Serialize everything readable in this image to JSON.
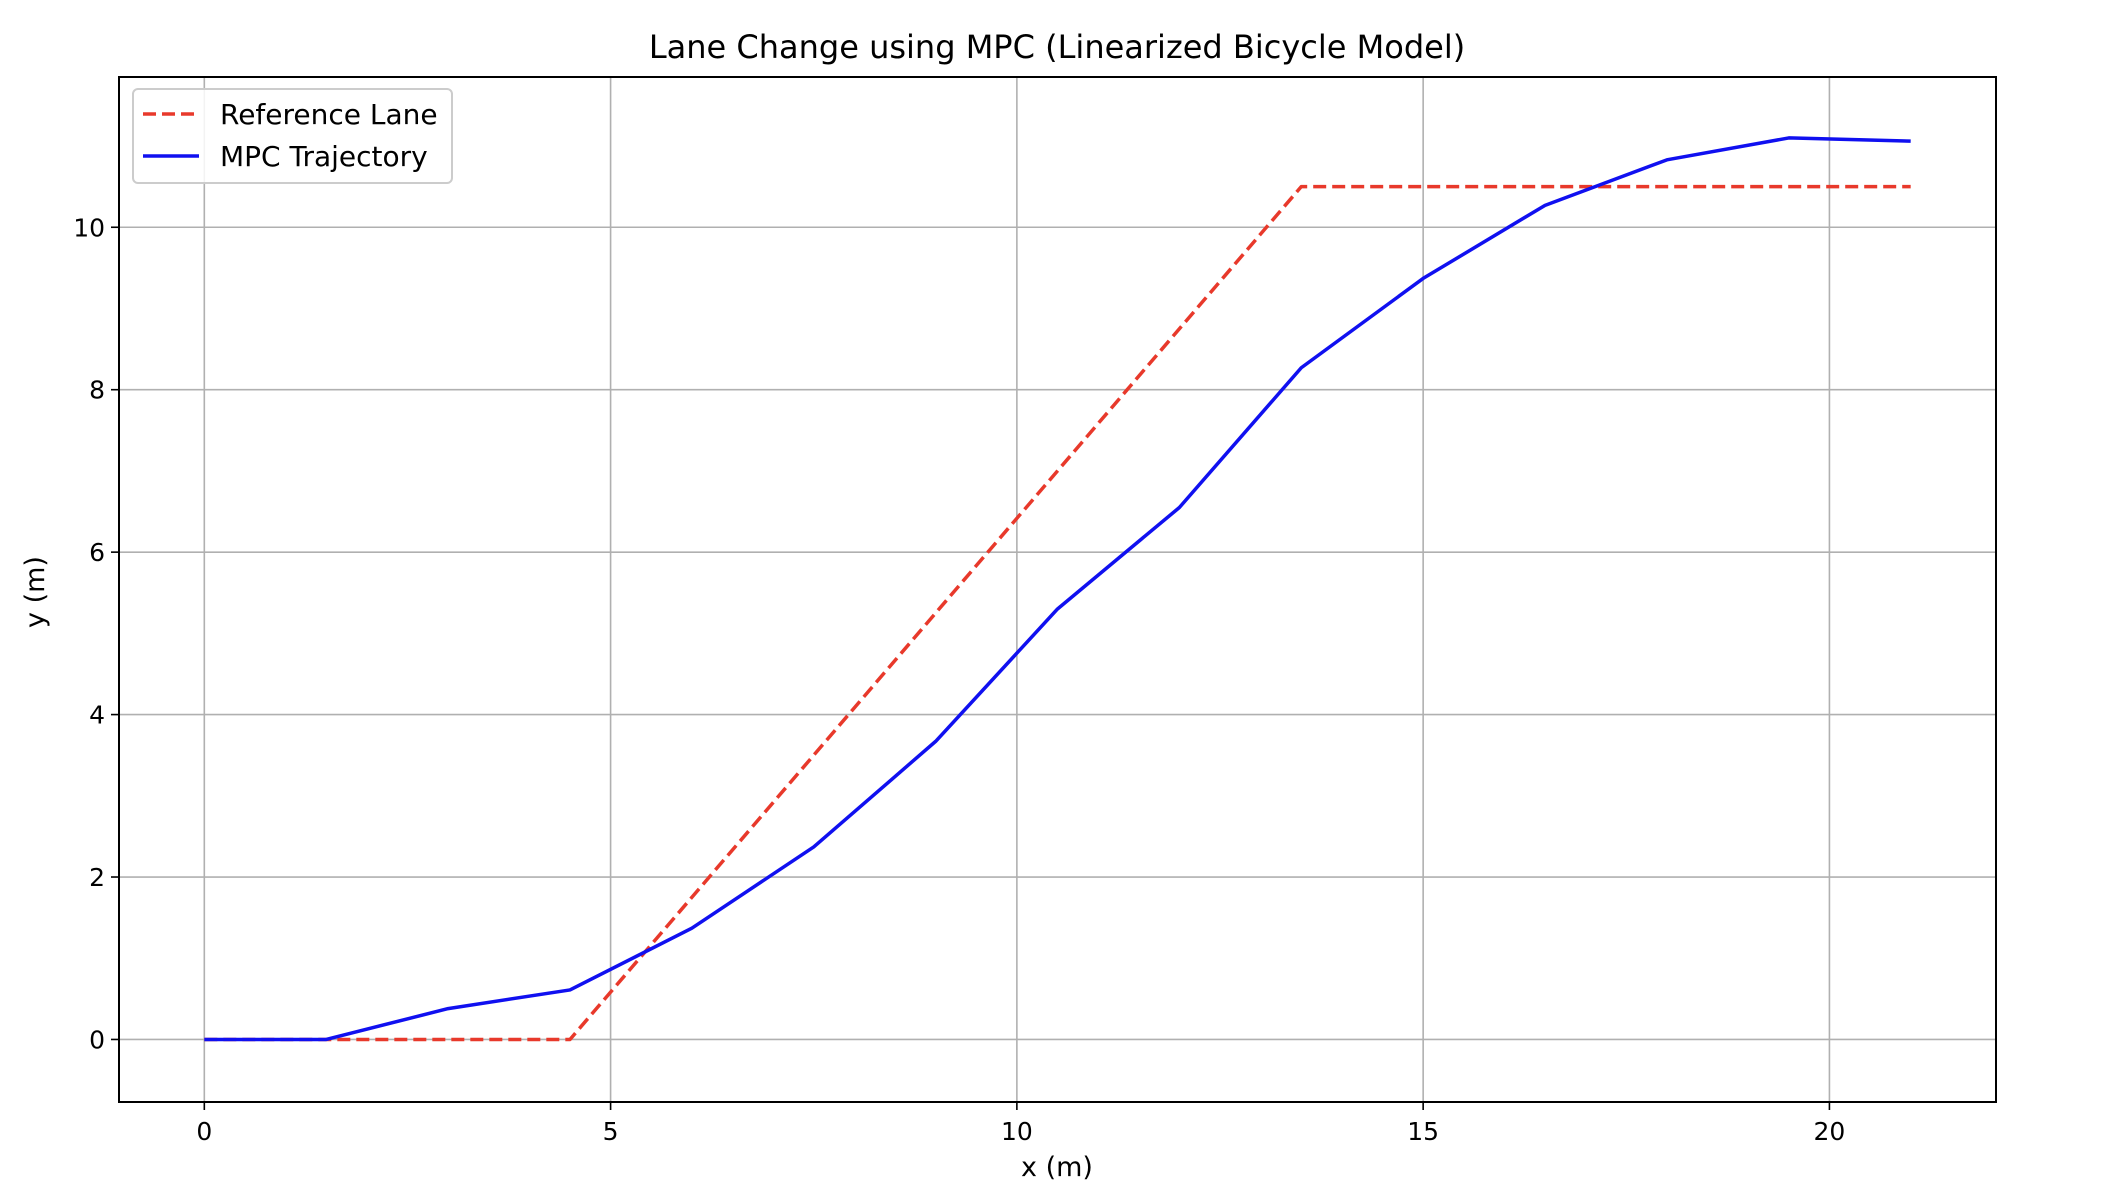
{
  "chart_data": {
    "type": "line",
    "title": "Lane Change using MPC (Linearized Bicycle Model)",
    "xlabel": "x (m)",
    "ylabel": "y (m)",
    "xlim": [
      -1.05,
      22.05
    ],
    "ylim": [
      -0.77,
      11.85
    ],
    "xticks": [
      0,
      5,
      10,
      15,
      20
    ],
    "yticks": [
      0,
      2,
      4,
      6,
      8,
      10
    ],
    "grid": true,
    "legend_position": "top-left",
    "series": [
      {
        "name": "Reference Lane",
        "color": "#e8392b",
        "style": "dashed",
        "x": [
          0,
          1.5,
          3,
          4.5,
          13.5,
          15,
          16.5,
          18,
          19.5,
          21
        ],
        "y": [
          0,
          0,
          0,
          0,
          10.5,
          10.5,
          10.5,
          10.5,
          10.5,
          10.5
        ]
      },
      {
        "name": "MPC Trajectory",
        "color": "#1010f0",
        "style": "solid",
        "x": [
          0,
          1.5,
          3,
          4.5,
          6,
          7.5,
          9,
          10.5,
          12,
          13.5,
          15,
          16.5,
          18,
          19.5,
          21
        ],
        "y": [
          0,
          0,
          0.38,
          0.61,
          1.37,
          2.37,
          3.67,
          5.3,
          6.55,
          8.27,
          9.37,
          10.27,
          10.83,
          11.1,
          11.06
        ]
      }
    ]
  }
}
